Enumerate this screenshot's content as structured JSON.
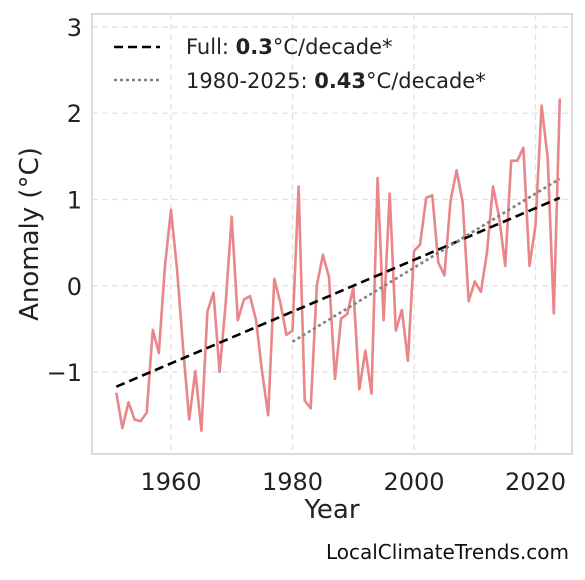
{
  "chart_data": {
    "type": "line",
    "xlabel": "Year",
    "ylabel": "Anomaly (°C)",
    "xlim": [
      1947,
      2026
    ],
    "ylim": [
      -1.95,
      3.15
    ],
    "xticks": [
      1960,
      1980,
      2000,
      2020
    ],
    "xtick_labels": [
      "1960",
      "1980",
      "2000",
      "2020"
    ],
    "yticks": [
      -1,
      0,
      1,
      2,
      3
    ],
    "ytick_labels": [
      "−1",
      "0",
      "1",
      "2",
      "3"
    ],
    "grid": true,
    "legend_position": "top-left",
    "series": [
      {
        "kind": "anomaly",
        "color": "#e8868a",
        "x": [
          1951,
          1952,
          1953,
          1954,
          1955,
          1956,
          1957,
          1958,
          1959,
          1960,
          1961,
          1962,
          1963,
          1964,
          1965,
          1966,
          1967,
          1968,
          1969,
          1970,
          1971,
          1972,
          1973,
          1974,
          1975,
          1976,
          1977,
          1978,
          1979,
          1980,
          1981,
          1982,
          1983,
          1984,
          1985,
          1986,
          1987,
          1988,
          1989,
          1990,
          1991,
          1992,
          1993,
          1994,
          1995,
          1996,
          1997,
          1998,
          1999,
          2000,
          2001,
          2002,
          2003,
          2004,
          2005,
          2006,
          2007,
          2008,
          2009,
          2010,
          2011,
          2012,
          2013,
          2014,
          2015,
          2016,
          2017,
          2018,
          2019,
          2020,
          2021,
          2022,
          2023,
          2024
        ],
        "y": [
          -1.24,
          -1.65,
          -1.35,
          -1.55,
          -1.57,
          -1.47,
          -0.51,
          -0.78,
          0.22,
          0.88,
          0.18,
          -0.72,
          -1.55,
          -0.99,
          -1.68,
          -0.3,
          -0.08,
          -1.0,
          -0.2,
          0.8,
          -0.4,
          -0.16,
          -0.12,
          -0.4,
          -1.0,
          -1.5,
          0.08,
          -0.2,
          -0.57,
          -0.52,
          1.15,
          -1.33,
          -1.42,
          0.0,
          0.36,
          0.1,
          -1.08,
          -0.38,
          -0.33,
          -0.02,
          -1.2,
          -0.75,
          -1.25,
          1.25,
          -0.4,
          1.07,
          -0.52,
          -0.28,
          -0.87,
          0.4,
          0.48,
          1.02,
          1.05,
          0.27,
          0.12,
          0.98,
          1.34,
          0.97,
          -0.18,
          0.05,
          -0.07,
          0.38,
          1.15,
          0.8,
          0.23,
          1.45,
          1.45,
          1.6,
          0.23,
          0.7,
          2.09,
          1.48,
          -0.32,
          2.17
        ]
      },
      {
        "kind": "trend-full",
        "name": "Full",
        "color": "#000000",
        "dash": "9,5",
        "x": [
          1951,
          2024
        ],
        "y": [
          -1.17,
          1.02
        ]
      },
      {
        "kind": "trend-recent",
        "name": "1980-2025",
        "color": "#808080",
        "dash": "3,3",
        "x": [
          1980,
          2024
        ],
        "y": [
          -0.65,
          1.24
        ]
      }
    ]
  },
  "legend": {
    "full_prefix": "Full: ",
    "full_value": "0.3",
    "full_suffix": "°C/decade*",
    "recent_prefix": "1980-2025: ",
    "recent_value": "0.43",
    "recent_suffix": "°C/decade*"
  },
  "attribution": "LocalClimateTrends.com"
}
